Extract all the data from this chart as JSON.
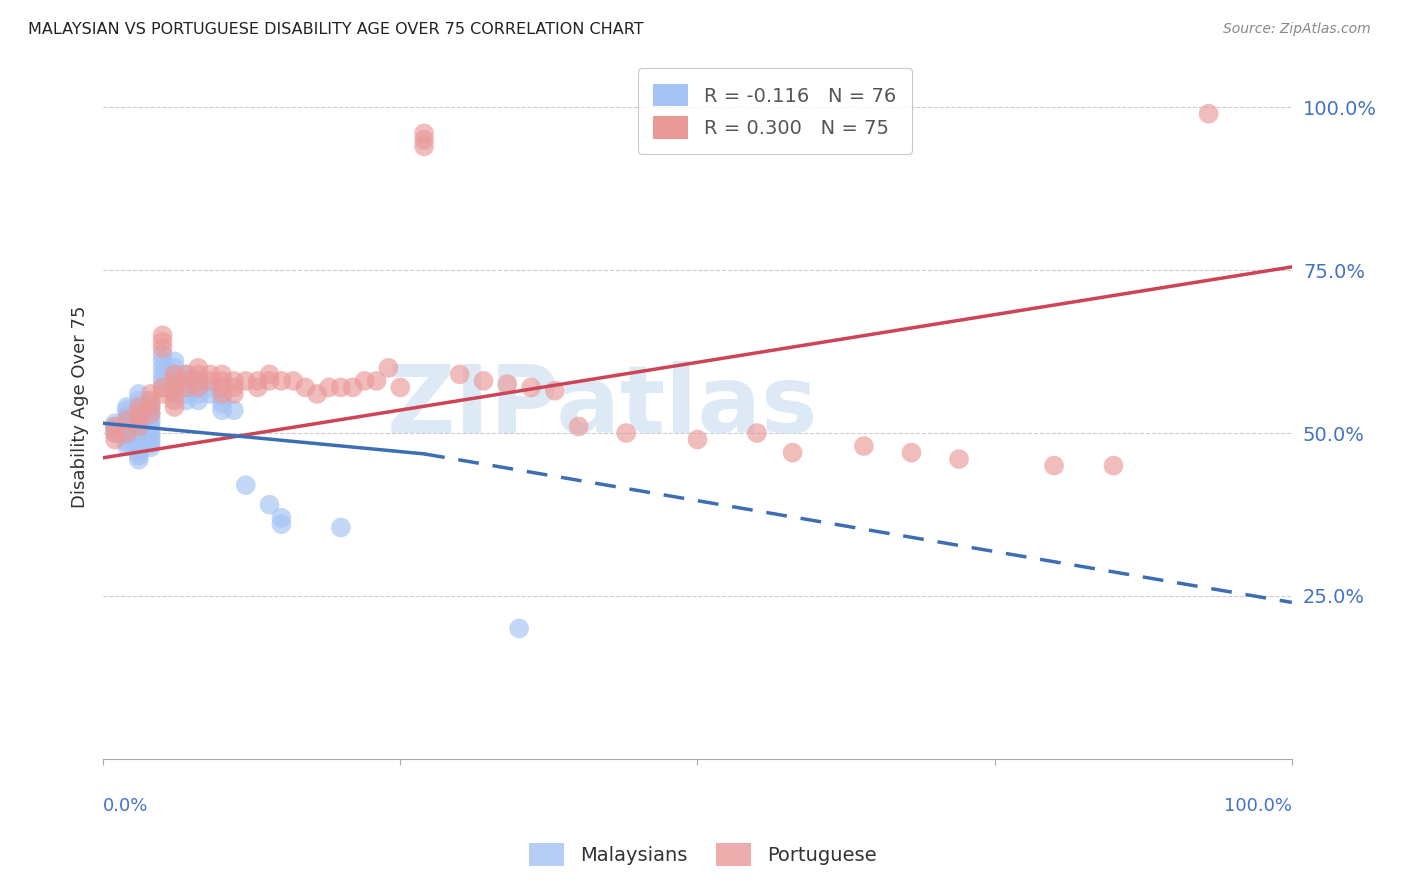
{
  "title": "MALAYSIAN VS PORTUGUESE DISABILITY AGE OVER 75 CORRELATION CHART",
  "source": "Source: ZipAtlas.com",
  "ylabel": "Disability Age Over 75",
  "ytick_values": [
    1.0,
    0.75,
    0.5,
    0.25
  ],
  "xlim": [
    0.0,
    1.0
  ],
  "ylim": [
    0.0,
    1.08
  ],
  "legend_line1": "R = -0.116   N = 76",
  "legend_line2": "R = 0.300   N = 75",
  "watermark": "ZIPatlas",
  "watermark_color": "#cfe2f3",
  "malaysian_color": "#a4c2f4",
  "portuguese_color": "#ea9999",
  "trend_malaysian_color": "#3d6eb4",
  "trend_portuguese_color": "#cc4455",
  "background_color": "#ffffff",
  "grid_color": "#cccccc",
  "axis_label_color": "#4472c4",
  "title_color": "#222222",
  "malaysians_scatter_x": [
    0.01,
    0.01,
    0.01,
    0.01,
    0.02,
    0.02,
    0.02,
    0.02,
    0.02,
    0.02,
    0.02,
    0.02,
    0.02,
    0.02,
    0.02,
    0.03,
    0.03,
    0.03,
    0.03,
    0.03,
    0.03,
    0.03,
    0.03,
    0.03,
    0.03,
    0.03,
    0.03,
    0.03,
    0.03,
    0.03,
    0.03,
    0.03,
    0.04,
    0.04,
    0.04,
    0.04,
    0.04,
    0.04,
    0.04,
    0.04,
    0.04,
    0.04,
    0.04,
    0.05,
    0.05,
    0.05,
    0.05,
    0.05,
    0.05,
    0.06,
    0.06,
    0.06,
    0.06,
    0.06,
    0.06,
    0.07,
    0.07,
    0.07,
    0.07,
    0.07,
    0.08,
    0.08,
    0.08,
    0.08,
    0.09,
    0.09,
    0.1,
    0.1,
    0.1,
    0.11,
    0.12,
    0.14,
    0.15,
    0.15,
    0.2,
    0.35
  ],
  "malaysians_scatter_y": [
    0.515,
    0.51,
    0.505,
    0.5,
    0.54,
    0.535,
    0.528,
    0.522,
    0.516,
    0.51,
    0.504,
    0.498,
    0.492,
    0.486,
    0.48,
    0.56,
    0.55,
    0.542,
    0.536,
    0.53,
    0.524,
    0.518,
    0.512,
    0.506,
    0.5,
    0.494,
    0.488,
    0.482,
    0.476,
    0.47,
    0.465,
    0.459,
    0.545,
    0.538,
    0.53,
    0.522,
    0.516,
    0.508,
    0.502,
    0.496,
    0.49,
    0.484,
    0.478,
    0.62,
    0.61,
    0.6,
    0.59,
    0.58,
    0.57,
    0.61,
    0.6,
    0.59,
    0.58,
    0.57,
    0.56,
    0.59,
    0.58,
    0.57,
    0.56,
    0.55,
    0.58,
    0.57,
    0.56,
    0.55,
    0.57,
    0.56,
    0.555,
    0.545,
    0.535,
    0.535,
    0.42,
    0.39,
    0.37,
    0.36,
    0.355,
    0.2
  ],
  "portuguese_scatter_x": [
    0.01,
    0.01,
    0.01,
    0.02,
    0.02,
    0.03,
    0.03,
    0.03,
    0.03,
    0.04,
    0.04,
    0.04,
    0.04,
    0.05,
    0.05,
    0.05,
    0.05,
    0.05,
    0.06,
    0.06,
    0.06,
    0.06,
    0.06,
    0.06,
    0.07,
    0.07,
    0.07,
    0.08,
    0.08,
    0.08,
    0.08,
    0.09,
    0.09,
    0.1,
    0.1,
    0.1,
    0.1,
    0.11,
    0.11,
    0.11,
    0.12,
    0.13,
    0.13,
    0.14,
    0.14,
    0.15,
    0.16,
    0.17,
    0.18,
    0.19,
    0.2,
    0.21,
    0.22,
    0.23,
    0.24,
    0.25,
    0.27,
    0.27,
    0.27,
    0.3,
    0.32,
    0.34,
    0.36,
    0.38,
    0.4,
    0.44,
    0.5,
    0.55,
    0.58,
    0.64,
    0.68,
    0.72,
    0.8,
    0.85,
    0.93
  ],
  "portuguese_scatter_y": [
    0.51,
    0.5,
    0.49,
    0.52,
    0.5,
    0.54,
    0.53,
    0.52,
    0.51,
    0.56,
    0.55,
    0.54,
    0.53,
    0.65,
    0.64,
    0.63,
    0.57,
    0.56,
    0.59,
    0.58,
    0.57,
    0.56,
    0.55,
    0.54,
    0.59,
    0.58,
    0.57,
    0.6,
    0.59,
    0.58,
    0.57,
    0.59,
    0.58,
    0.59,
    0.58,
    0.57,
    0.56,
    0.58,
    0.57,
    0.56,
    0.58,
    0.58,
    0.57,
    0.59,
    0.58,
    0.58,
    0.58,
    0.57,
    0.56,
    0.57,
    0.57,
    0.57,
    0.58,
    0.58,
    0.6,
    0.57,
    0.96,
    0.95,
    0.94,
    0.59,
    0.58,
    0.575,
    0.57,
    0.565,
    0.51,
    0.5,
    0.49,
    0.5,
    0.47,
    0.48,
    0.47,
    0.46,
    0.45,
    0.45,
    0.99
  ],
  "trend_portuguese_x0": 0.0,
  "trend_portuguese_y0": 0.462,
  "trend_portuguese_x1": 1.0,
  "trend_portuguese_y1": 0.755,
  "trend_malaysian_solid_x0": 0.0,
  "trend_malaysian_solid_y0": 0.515,
  "trend_malaysian_solid_x1": 0.27,
  "trend_malaysian_solid_y1": 0.468,
  "trend_malaysian_dashed_x0": 0.27,
  "trend_malaysian_dashed_y0": 0.468,
  "trend_malaysian_dashed_x1": 1.0,
  "trend_malaysian_dashed_y1": 0.24
}
